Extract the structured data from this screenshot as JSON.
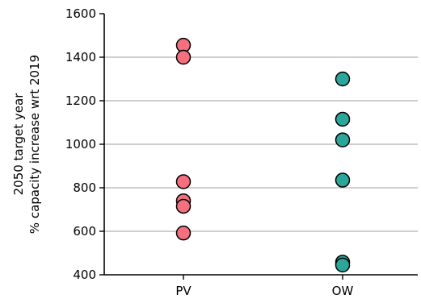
{
  "chart_data": {
    "type": "scatter",
    "title": "",
    "ylabel_line1": "2050 target year",
    "ylabel_line2": "% capacity increase wrt 2019",
    "xlabel": "",
    "ylim": [
      400,
      1600
    ],
    "yticks": [
      400,
      600,
      800,
      1000,
      1200,
      1400,
      1600
    ],
    "grid": "horizontal",
    "categories": [
      "PV",
      "OW"
    ],
    "series": [
      {
        "category": "PV",
        "color": "#f5707e",
        "values": [
          1455,
          1400,
          828,
          740,
          715,
          592
        ]
      },
      {
        "category": "OW",
        "color": "#2aa69a",
        "values": [
          1300,
          1115,
          1020,
          835,
          458,
          445
        ]
      }
    ]
  }
}
